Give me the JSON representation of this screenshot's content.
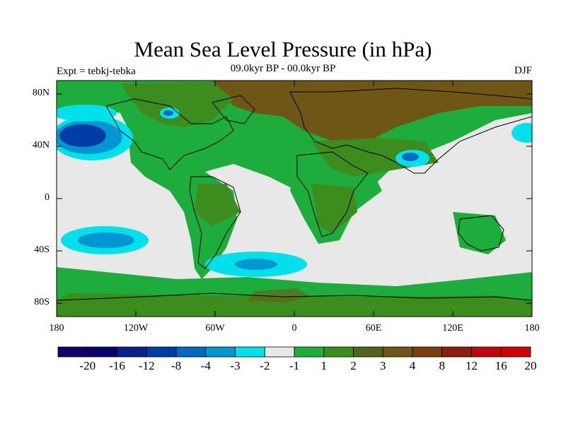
{
  "title": "Mean Sea Level Pressure (in hPa)",
  "subtitle": "09.0kyr BP - 00.0kyr BP",
  "experiment": "Expt = tebkj-tebka",
  "season": "DJF",
  "lat_ticks": [
    "80N",
    "40N",
    "0",
    "40S",
    "80S"
  ],
  "lon_ticks": [
    "180",
    "120W",
    "60W",
    "0",
    "60E",
    "120E",
    "180"
  ],
  "colorbar": {
    "labels": [
      "-20",
      "-16",
      "-12",
      "-8",
      "-4",
      "-3",
      "-2",
      "-1",
      "1",
      "2",
      "3",
      "4",
      "8",
      "12",
      "16",
      "20"
    ],
    "colors": [
      "#12006a",
      "#0a0070",
      "#0a1e8c",
      "#003ca8",
      "#0068c0",
      "#0096d2",
      "#00e0ea",
      "#e8e8e8",
      "#1ead3c",
      "#3c8c1e",
      "#50641a",
      "#6e5616",
      "#7c3e0e",
      "#8c1e0c",
      "#c0060c",
      "#d20000"
    ]
  },
  "chart_data": {
    "type": "map",
    "variable": "Mean Sea Level Pressure difference (hPa)",
    "experiments": "tebkj-tebka",
    "period": "09.0kyr BP - 00.0kyr BP",
    "season": "DJF",
    "lon_range": [
      -180,
      180
    ],
    "lat_range": [
      -90,
      90
    ],
    "contour_levels": [
      -20,
      -16,
      -12,
      -8,
      -4,
      -3,
      -2,
      -1,
      1,
      2,
      3,
      4,
      8,
      12,
      16,
      20
    ],
    "features": [
      {
        "region": "North Pacific (Aleutian low)",
        "lon": -160,
        "lat": 48,
        "value_range": [
          -8,
          -4
        ]
      },
      {
        "region": "Hudson Bay",
        "lon": -88,
        "lat": 62,
        "value_range": [
          -4,
          -3
        ]
      },
      {
        "region": "Tibetan Plateau",
        "lon": 90,
        "lat": 30,
        "value_range": [
          -4,
          -3
        ]
      },
      {
        "region": "South Pacific",
        "lon": -155,
        "lat": -32,
        "value_range": [
          -3,
          -2
        ]
      },
      {
        "region": "South Atlantic",
        "lon": -35,
        "lat": -48,
        "value_range": [
          -3,
          -2
        ]
      },
      {
        "region": "Eurasian high latitudes",
        "lon": 60,
        "lat": 70,
        "value_range": [
          4,
          8
        ]
      },
      {
        "region": "Antarctica",
        "lon": 0,
        "lat": -80,
        "value_range": [
          2,
          4
        ]
      }
    ]
  }
}
